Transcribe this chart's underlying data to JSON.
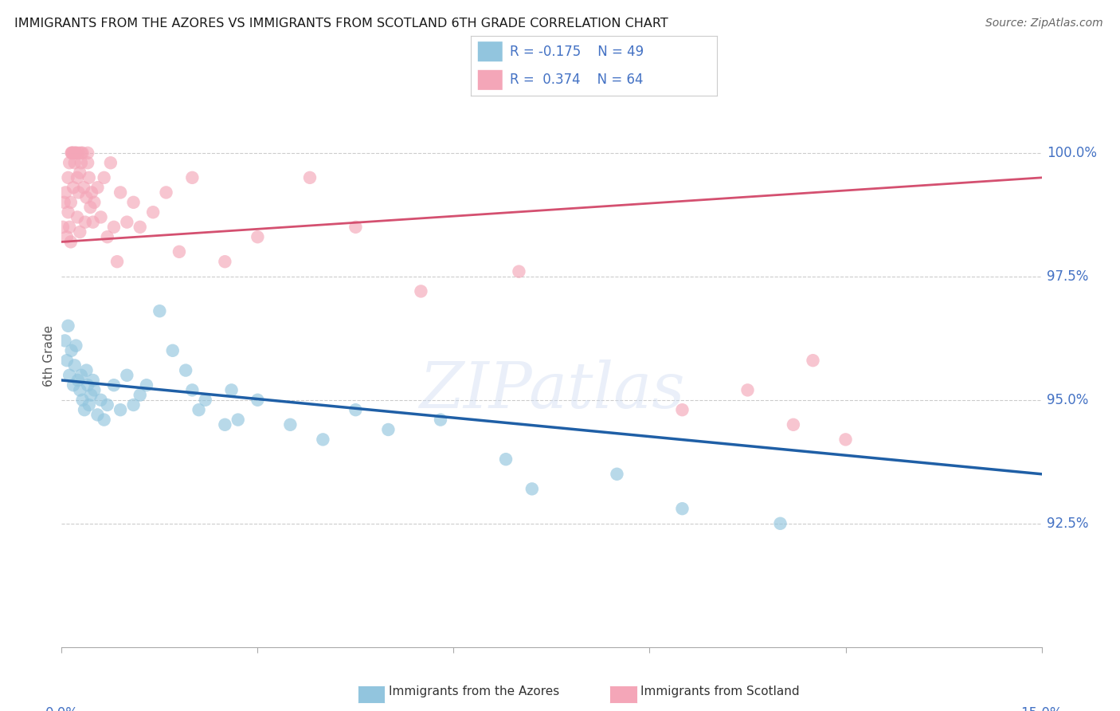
{
  "title": "IMMIGRANTS FROM THE AZORES VS IMMIGRANTS FROM SCOTLAND 6TH GRADE CORRELATION CHART",
  "source": "Source: ZipAtlas.com",
  "ylabel": "6th Grade",
  "r_azores": -0.175,
  "n_azores": 49,
  "r_scotland": 0.374,
  "n_scotland": 64,
  "legend_label_azores": "Immigrants from the Azores",
  "legend_label_scotland": "Immigrants from Scotland",
  "color_azores": "#92c5de",
  "color_scotland": "#f4a6b8",
  "trendline_color_azores": "#1f5fa6",
  "trendline_color_scotland": "#d45070",
  "watermark": "ZIPatlas",
  "xlim": [
    0.0,
    15.0
  ],
  "ylim": [
    90.0,
    101.8
  ],
  "yticks": [
    92.5,
    95.0,
    97.5,
    100.0
  ],
  "ytick_labels": [
    "92.5%",
    "95.0%",
    "97.5%",
    "100.0%"
  ],
  "azores_x": [
    0.05,
    0.08,
    0.1,
    0.12,
    0.15,
    0.18,
    0.2,
    0.22,
    0.25,
    0.28,
    0.3,
    0.32,
    0.35,
    0.38,
    0.4,
    0.42,
    0.45,
    0.48,
    0.5,
    0.55,
    0.6,
    0.65,
    0.7,
    0.8,
    0.9,
    1.0,
    1.1,
    1.2,
    1.3,
    1.5,
    1.7,
    1.9,
    2.0,
    2.1,
    2.2,
    2.5,
    2.6,
    2.7,
    3.0,
    3.5,
    4.0,
    4.5,
    5.0,
    5.8,
    6.8,
    7.2,
    8.5,
    9.5,
    11.0
  ],
  "azores_y": [
    96.2,
    95.8,
    96.5,
    95.5,
    96.0,
    95.3,
    95.7,
    96.1,
    95.4,
    95.2,
    95.5,
    95.0,
    94.8,
    95.6,
    95.3,
    94.9,
    95.1,
    95.4,
    95.2,
    94.7,
    95.0,
    94.6,
    94.9,
    95.3,
    94.8,
    95.5,
    94.9,
    95.1,
    95.3,
    96.8,
    96.0,
    95.6,
    95.2,
    94.8,
    95.0,
    94.5,
    95.2,
    94.6,
    95.0,
    94.5,
    94.2,
    94.8,
    94.4,
    94.6,
    93.8,
    93.2,
    93.5,
    92.8,
    92.5
  ],
  "scotland_x": [
    0.02,
    0.04,
    0.06,
    0.08,
    0.1,
    0.1,
    0.12,
    0.12,
    0.14,
    0.14,
    0.15,
    0.16,
    0.16,
    0.18,
    0.18,
    0.2,
    0.2,
    0.22,
    0.22,
    0.24,
    0.24,
    0.26,
    0.26,
    0.28,
    0.28,
    0.3,
    0.3,
    0.32,
    0.34,
    0.36,
    0.38,
    0.4,
    0.4,
    0.42,
    0.44,
    0.46,
    0.48,
    0.5,
    0.55,
    0.6,
    0.65,
    0.7,
    0.75,
    0.8,
    0.85,
    0.9,
    1.0,
    1.1,
    1.2,
    1.4,
    1.6,
    1.8,
    2.0,
    2.5,
    3.0,
    3.8,
    4.5,
    5.5,
    7.0,
    9.5,
    10.5,
    11.2,
    11.5,
    12.0
  ],
  "scotland_y": [
    98.5,
    99.0,
    99.2,
    98.3,
    99.5,
    98.8,
    99.8,
    98.5,
    98.2,
    99.0,
    100.0,
    100.0,
    100.0,
    100.0,
    99.3,
    99.8,
    100.0,
    100.0,
    100.0,
    99.5,
    98.7,
    99.2,
    100.0,
    99.6,
    98.4,
    99.8,
    100.0,
    100.0,
    99.3,
    98.6,
    99.1,
    99.8,
    100.0,
    99.5,
    98.9,
    99.2,
    98.6,
    99.0,
    99.3,
    98.7,
    99.5,
    98.3,
    99.8,
    98.5,
    97.8,
    99.2,
    98.6,
    99.0,
    98.5,
    98.8,
    99.2,
    98.0,
    99.5,
    97.8,
    98.3,
    99.5,
    98.5,
    97.2,
    97.6,
    94.8,
    95.2,
    94.5,
    95.8,
    94.2
  ],
  "trendline_azores_x0": 0.0,
  "trendline_azores_y0": 95.4,
  "trendline_azores_x1": 15.0,
  "trendline_azores_y1": 93.5,
  "trendline_scotland_x0": 0.0,
  "trendline_scotland_y0": 98.2,
  "trendline_scotland_x1": 15.0,
  "trendline_scotland_y1": 99.5
}
